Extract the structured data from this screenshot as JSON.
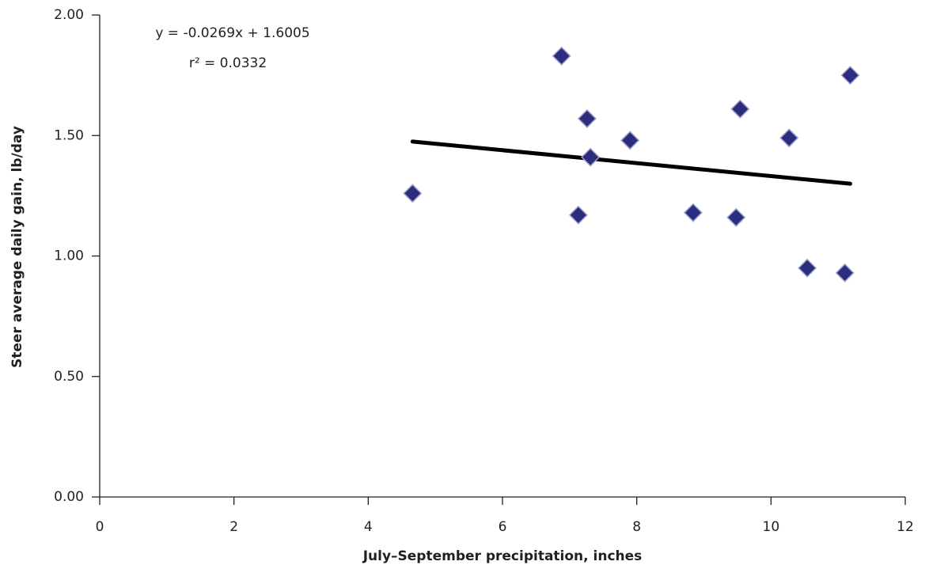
{
  "chart_data": {
    "type": "scatter",
    "x_label": "July–September precipitation, inches",
    "y_label": "Steer average daily gain, lb/day",
    "annotations": [
      "y = -0.0269x + 1.6005",
      "r² = 0.0332"
    ],
    "series": [
      {
        "color": "#2b2e7e",
        "x": [
          4.66,
          6.88,
          7.26,
          7.31,
          7.13,
          7.9,
          8.84,
          9.54,
          9.48,
          10.27,
          10.54,
          11.18,
          11.1
        ],
        "values": [
          1.26,
          1.83,
          1.57,
          1.41,
          1.17,
          1.48,
          1.18,
          1.61,
          1.16,
          1.49,
          0.95,
          1.75,
          0.93
        ]
      }
    ],
    "trendline": {
      "color": "#000000",
      "x": [
        4.66,
        11.18
      ],
      "values": [
        1.475,
        1.3
      ]
    },
    "xlim": [
      0,
      12
    ],
    "ylim": [
      0,
      2
    ],
    "xticks": [
      0,
      2,
      4,
      6,
      8,
      10,
      12
    ],
    "yticks": [
      {
        "value": 0,
        "label": "0.00"
      },
      {
        "value": 0.5,
        "label": "0.50"
      },
      {
        "value": 1,
        "label": "1.00"
      },
      {
        "value": 1.5,
        "label": "1.50"
      },
      {
        "value": 2,
        "label": "2.00"
      }
    ],
    "grid": false
  }
}
